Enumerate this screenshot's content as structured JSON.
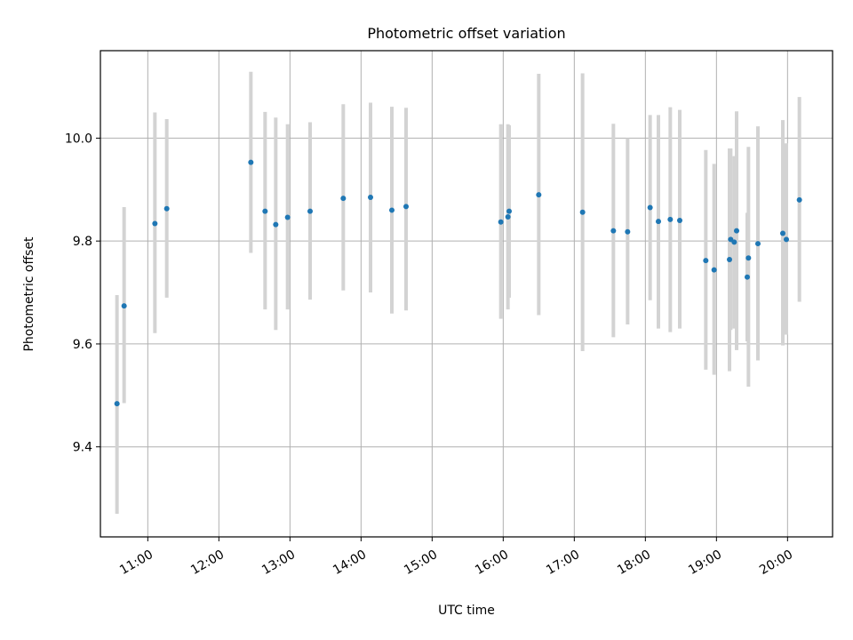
{
  "chart_data": {
    "type": "scatter",
    "title": "Photometric offset variation",
    "xlabel": "UTC time",
    "ylabel": "Photometric offset",
    "xlim": [
      "10:20",
      "20:38"
    ],
    "ylim": [
      9.225,
      10.17
    ],
    "grid": true,
    "x_tick_labels": [
      "11:00",
      "12:00",
      "13:00",
      "14:00",
      "15:00",
      "16:00",
      "17:00",
      "18:00",
      "19:00",
      "20:00"
    ],
    "y_tick_labels": [
      "9.4",
      "9.6",
      "9.8",
      "10.0"
    ],
    "colors": {
      "points": "#1f77b4",
      "error_bars": "#d3d3d3",
      "grid": "#b0b0b0"
    },
    "points": [
      {
        "x": "10:34",
        "y": 9.484,
        "err_low": 9.27,
        "err_high": 9.695
      },
      {
        "x": "10:40",
        "y": 9.674,
        "err_low": 9.485,
        "err_high": 9.866
      },
      {
        "x": "11:06",
        "y": 9.834,
        "err_low": 9.621,
        "err_high": 10.05
      },
      {
        "x": "11:16",
        "y": 9.863,
        "err_low": 9.69,
        "err_high": 10.037
      },
      {
        "x": "12:27",
        "y": 9.953,
        "err_low": 9.777,
        "err_high": 10.129
      },
      {
        "x": "12:39",
        "y": 9.858,
        "err_low": 9.667,
        "err_high": 10.051
      },
      {
        "x": "12:48",
        "y": 9.832,
        "err_low": 9.627,
        "err_high": 10.04
      },
      {
        "x": "12:58",
        "y": 9.846,
        "err_low": 9.667,
        "err_high": 10.027
      },
      {
        "x": "13:17",
        "y": 9.858,
        "err_low": 9.686,
        "err_high": 10.031
      },
      {
        "x": "13:45",
        "y": 9.883,
        "err_low": 9.704,
        "err_high": 10.066
      },
      {
        "x": "14:08",
        "y": 9.885,
        "err_low": 9.7,
        "err_high": 10.069
      },
      {
        "x": "14:26",
        "y": 9.86,
        "err_low": 9.659,
        "err_high": 10.061
      },
      {
        "x": "14:38",
        "y": 9.867,
        "err_low": 9.665,
        "err_high": 10.059
      },
      {
        "x": "15:58",
        "y": 9.837,
        "err_low": 9.649,
        "err_high": 10.027
      },
      {
        "x": "16:04",
        "y": 9.847,
        "err_low": 9.667,
        "err_high": 10.027
      },
      {
        "x": "16:05",
        "y": 9.858,
        "err_low": 9.69,
        "err_high": 10.025
      },
      {
        "x": "16:30",
        "y": 9.89,
        "err_low": 9.656,
        "err_high": 10.125
      },
      {
        "x": "17:07",
        "y": 9.856,
        "err_low": 9.586,
        "err_high": 10.126
      },
      {
        "x": "17:33",
        "y": 9.82,
        "err_low": 9.613,
        "err_high": 10.028
      },
      {
        "x": "17:45",
        "y": 9.818,
        "err_low": 9.638,
        "err_high": 10.0
      },
      {
        "x": "18:04",
        "y": 9.865,
        "err_low": 9.685,
        "err_high": 10.045
      },
      {
        "x": "18:11",
        "y": 9.838,
        "err_low": 9.63,
        "err_high": 10.045
      },
      {
        "x": "18:21",
        "y": 9.842,
        "err_low": 9.623,
        "err_high": 10.06
      },
      {
        "x": "18:29",
        "y": 9.84,
        "err_low": 9.63,
        "err_high": 10.055
      },
      {
        "x": "18:51",
        "y": 9.762,
        "err_low": 9.55,
        "err_high": 9.977
      },
      {
        "x": "18:58",
        "y": 9.744,
        "err_low": 9.54,
        "err_high": 9.95
      },
      {
        "x": "19:11",
        "y": 9.764,
        "err_low": 9.547,
        "err_high": 9.98
      },
      {
        "x": "19:12",
        "y": 9.803,
        "err_low": 9.627,
        "err_high": 9.98
      },
      {
        "x": "19:15",
        "y": 9.798,
        "err_low": 9.63,
        "err_high": 9.965
      },
      {
        "x": "19:17",
        "y": 9.82,
        "err_low": 9.588,
        "err_high": 10.052
      },
      {
        "x": "19:26",
        "y": 9.73,
        "err_low": 9.605,
        "err_high": 9.855
      },
      {
        "x": "19:27",
        "y": 9.767,
        "err_low": 9.517,
        "err_high": 9.983
      },
      {
        "x": "19:35",
        "y": 9.795,
        "err_low": 9.568,
        "err_high": 10.023
      },
      {
        "x": "19:56",
        "y": 9.815,
        "err_low": 9.597,
        "err_high": 10.035
      },
      {
        "x": "19:59",
        "y": 9.803,
        "err_low": 9.618,
        "err_high": 9.99
      },
      {
        "x": "20:10",
        "y": 9.88,
        "err_low": 9.682,
        "err_high": 10.08
      }
    ]
  }
}
